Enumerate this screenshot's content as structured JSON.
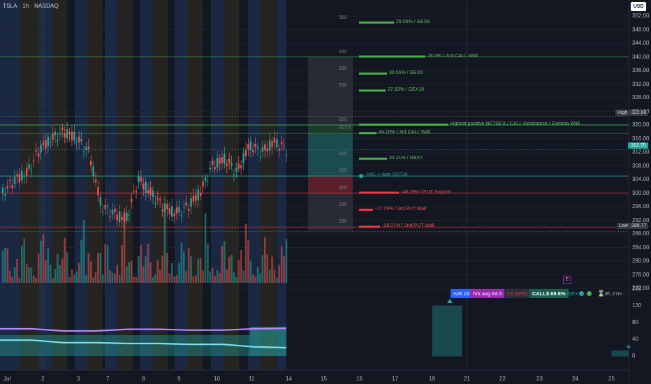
{
  "header": {
    "symbol": "TSLA · 1h · NASDAQ",
    "currency": "USD"
  },
  "price_axis": {
    "ticks": [
      "352.00",
      "348.00",
      "344.00",
      "340.00",
      "336.00",
      "332.00",
      "328.00",
      "324.00",
      "320.00",
      "316.00",
      "312.00",
      "308.00",
      "304.00",
      "300.00",
      "296.00",
      "292.00",
      "288.00",
      "284.00",
      "280.00",
      "276.00",
      "272.00"
    ]
  },
  "osc_axis": {
    "ticks": [
      "160",
      "120",
      "80",
      "40",
      "0"
    ]
  },
  "time_axis": {
    "ticks": [
      "Jul",
      "2",
      "3",
      "7",
      "8",
      "9",
      "10",
      "11",
      "14",
      "15",
      "16",
      "17",
      "18",
      "21",
      "22",
      "23",
      "24",
      "25"
    ]
  },
  "price_tags": {
    "high": {
      "label": "High",
      "value": "322.60"
    },
    "last": {
      "value": "312.75"
    },
    "low": {
      "label": "Low",
      "value": "288.77"
    }
  },
  "levels": [
    {
      "strike": "350",
      "label": "29.06% / GEX8",
      "price": 350,
      "bar": 50,
      "color": "#4caf50"
    },
    {
      "strike": "340",
      "label": "78.5% / 2nd CALL Wall",
      "price": 340,
      "bar": 95,
      "color": "#4caf50"
    },
    {
      "strike": "335",
      "label": "30.56% / GEX6",
      "price": 335,
      "bar": 40,
      "color": "#4caf50"
    },
    {
      "strike": "330",
      "label": "27.83% / GEX10",
      "price": 330,
      "bar": 38,
      "color": "#4caf50"
    },
    {
      "strike": "320",
      "label": "Highest positive NETGEX / CALL Resistance / Gamma Wall",
      "price": 320,
      "bar": 127,
      "color": "#4caf50"
    },
    {
      "strike": "317.5",
      "label": "44.16% / 3rd CALL Wall",
      "price": 317.5,
      "bar": 25,
      "color": "#4caf50"
    },
    {
      "strike": "310",
      "label": "33.31% / GEX7",
      "price": 310,
      "bar": 40,
      "color": "#4caf50"
    },
    {
      "strike": "305",
      "label": "HVL ≈ 4ote (07/18)",
      "price": 305,
      "bar": 0,
      "color": "#26a69a"
    },
    {
      "strike": "300",
      "label": "-48.79% / PUT Support",
      "price": 300,
      "bar": 57,
      "color": "#f23645"
    },
    {
      "strike": "295",
      "label": "-17.79% / 3rd PUT Wall",
      "price": 295,
      "bar": 20,
      "color": "#f23645"
    },
    {
      "strike": "290",
      "label": "-28.07% / 2nd PUT Wall",
      "price": 290,
      "bar": 30,
      "color": "#f23645"
    }
  ],
  "status_bar": {
    "ivr": "IVR 16",
    "ivx": "IVx avg 64.5",
    "change": "(-0.18%)",
    "calls": "CALL$ 69.8%",
    "gex": "GEX",
    "timer": "8h 27m",
    "event": "E"
  },
  "colors": {
    "up": "#26a69a",
    "down": "#ef5350",
    "bg": "#131722",
    "call": "#4caf50",
    "put": "#f23645",
    "hvl": "#26a69a"
  },
  "chart_data": {
    "type": "candlestick",
    "ylim": [
      270,
      354
    ],
    "x_categories": [
      "Jul",
      "2",
      "3",
      "7",
      "8",
      "9",
      "10",
      "11",
      "14",
      "15",
      "16",
      "17",
      "18",
      "21",
      "22",
      "23",
      "24",
      "25"
    ],
    "close_series": [
      300,
      304,
      306,
      313,
      316,
      318,
      316,
      312,
      296,
      294,
      292,
      304,
      300,
      296,
      294,
      296,
      300,
      308,
      310,
      306,
      314,
      312,
      315,
      312.75
    ],
    "oscillator": {
      "range": [
        0,
        160
      ],
      "purple": [
        65,
        65,
        60,
        60,
        64,
        64,
        62,
        62,
        65,
        66
      ],
      "teal": [
        38,
        38,
        32,
        32,
        30,
        30,
        28,
        28,
        22,
        20
      ]
    }
  }
}
